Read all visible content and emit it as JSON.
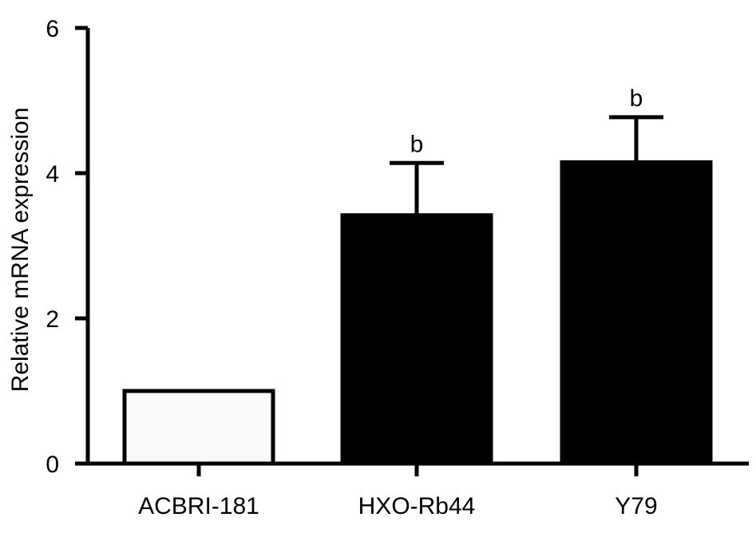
{
  "chart_data": {
    "type": "bar",
    "title": "",
    "xlabel": "",
    "ylabel": "Relative mRNA expression",
    "ylim": [
      0,
      6
    ],
    "yticks": [
      0,
      2,
      4,
      6
    ],
    "grid": false,
    "legend": "none",
    "categories": [
      "ACBRI-181",
      "HXO-Rb44",
      "Y79"
    ],
    "values": [
      1.0,
      3.42,
      4.15
    ],
    "error_upper": [
      0,
      0.72,
      0.62
    ],
    "annotations": [
      "",
      "b",
      "b"
    ],
    "bar_colors": [
      "#fafafa",
      "#000000",
      "#000000"
    ],
    "axis_color": "#000000"
  }
}
